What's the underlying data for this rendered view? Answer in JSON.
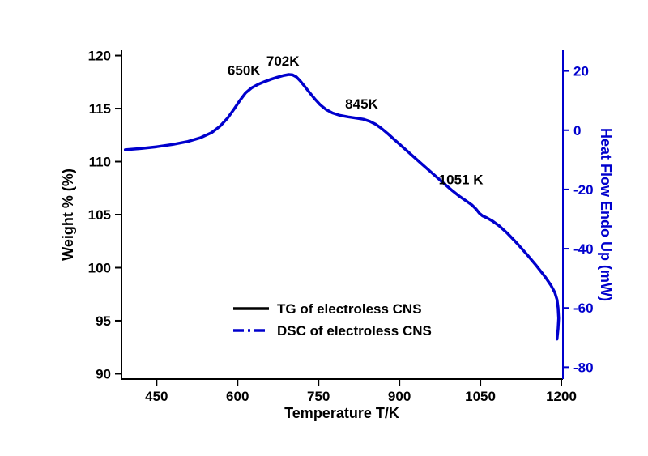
{
  "figure": {
    "background": "#ffffff",
    "accent_blue": "#0000cd",
    "black": "#000000"
  },
  "chart_data": {
    "type": "line",
    "title": "",
    "xlabel": "Temperature T/K",
    "x_axis": {
      "tick_values": [
        450,
        600,
        750,
        900,
        1050,
        1200
      ],
      "range": [
        385,
        1203
      ]
    },
    "left_axis": {
      "label": "Weight % (%)",
      "tick_values": [
        90,
        95,
        100,
        105,
        110,
        115,
        120
      ],
      "range": [
        89.5,
        120.5
      ],
      "color": "#000000"
    },
    "right_axis": {
      "label": "Heat Flow Endo Up (mW)",
      "tick_values": [
        20,
        0,
        -20,
        -40,
        -60,
        -80
      ],
      "range": [
        -84,
        27
      ],
      "color": "#0000cd"
    },
    "grid": false,
    "legend_position": "lower-center-inside",
    "series": [
      {
        "name": "TG of electroless CNS",
        "color": "#000000",
        "plot_style": "solid",
        "legend_style": "solid",
        "axis": "left",
        "points": []
      },
      {
        "name": "DSC of electroless CNS",
        "color": "#0000cd",
        "plot_style": "solid",
        "legend_style": "dashdot",
        "axis": "right",
        "points": [
          [
            392,
            -6.6
          ],
          [
            420,
            -6.2
          ],
          [
            450,
            -5.6
          ],
          [
            480,
            -4.8
          ],
          [
            508,
            -3.8
          ],
          [
            532,
            -2.5
          ],
          [
            552,
            -0.8
          ],
          [
            568,
            1.4
          ],
          [
            582,
            4.2
          ],
          [
            594,
            7.2
          ],
          [
            605,
            10.2
          ],
          [
            615,
            12.6
          ],
          [
            626,
            14.3
          ],
          [
            638,
            15.5
          ],
          [
            650,
            16.4
          ],
          [
            662,
            17.2
          ],
          [
            674,
            17.9
          ],
          [
            686,
            18.5
          ],
          [
            695,
            18.8
          ],
          [
            702,
            18.7
          ],
          [
            709,
            18.0
          ],
          [
            716,
            16.7
          ],
          [
            724,
            14.9
          ],
          [
            733,
            12.8
          ],
          [
            743,
            10.6
          ],
          [
            753,
            8.6
          ],
          [
            764,
            7.0
          ],
          [
            776,
            5.8
          ],
          [
            790,
            5.0
          ],
          [
            805,
            4.5
          ],
          [
            820,
            4.1
          ],
          [
            833,
            3.7
          ],
          [
            845,
            3.0
          ],
          [
            856,
            2.0
          ],
          [
            866,
            0.7
          ],
          [
            878,
            -1.1
          ],
          [
            892,
            -3.4
          ],
          [
            908,
            -6.0
          ],
          [
            926,
            -8.9
          ],
          [
            944,
            -11.8
          ],
          [
            962,
            -14.7
          ],
          [
            980,
            -17.6
          ],
          [
            998,
            -20.4
          ],
          [
            1012,
            -22.4
          ],
          [
            1024,
            -23.9
          ],
          [
            1034,
            -25.2
          ],
          [
            1042,
            -26.6
          ],
          [
            1048,
            -28.0
          ],
          [
            1054,
            -28.9
          ],
          [
            1062,
            -29.6
          ],
          [
            1072,
            -30.6
          ],
          [
            1085,
            -32.3
          ],
          [
            1100,
            -34.8
          ],
          [
            1118,
            -38.2
          ],
          [
            1136,
            -41.9
          ],
          [
            1154,
            -45.8
          ],
          [
            1170,
            -49.5
          ],
          [
            1181,
            -52.4
          ],
          [
            1188,
            -54.8
          ],
          [
            1192,
            -57.2
          ],
          [
            1194,
            -60.0
          ],
          [
            1195,
            -63.5
          ],
          [
            1194,
            -67.0
          ],
          [
            1192,
            -70.5
          ]
        ]
      }
    ],
    "annotations": [
      {
        "label": "650K",
        "x": 612,
        "y": 18.6
      },
      {
        "label": "702K",
        "x": 684,
        "y": 21.8
      },
      {
        "label": "845K",
        "x": 830,
        "y": 7.3
      },
      {
        "label": "1051 K",
        "x": 1014,
        "y": -18.3
      }
    ]
  }
}
